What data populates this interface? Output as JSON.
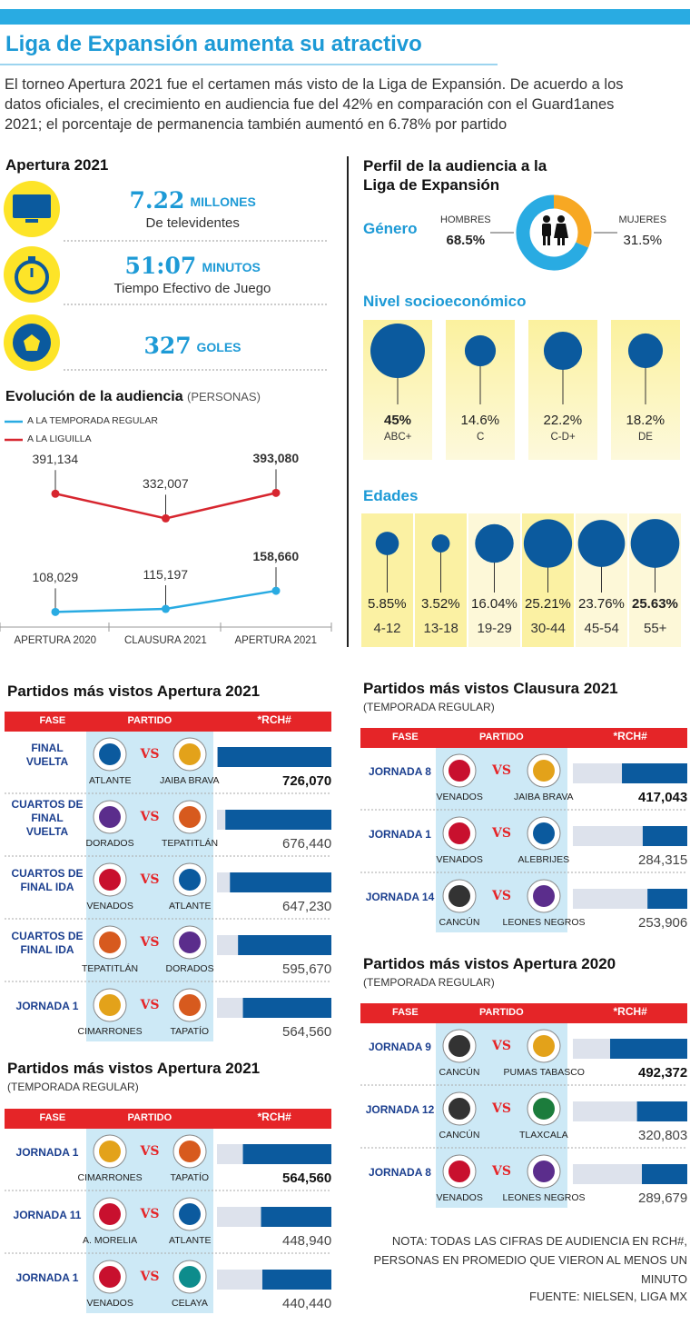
{
  "header": {
    "title": "Liga de Expansión aumenta su atractivo",
    "intro": "El torneo Apertura 2021 fue el certamen más visto de la Liga de Expansión. De acuerdo a los datos oficiales, el crecimiento en audiencia fue del 42% en comparación con el Guard1anes 2021; el porcentaje de permanencia también aumentó en 6.78% por partido"
  },
  "stats": {
    "title": "Apertura 2021",
    "items": [
      {
        "value": "7.22",
        "unit": "MILLONES",
        "label": "De televidentes"
      },
      {
        "value": "51:07",
        "unit": "MINUTOS",
        "label": "Tiempo Efectivo de Juego"
      },
      {
        "value": "327",
        "unit": "GOLES"
      }
    ]
  },
  "profile_title": "Perfil de la audiencia a la Liga de Expansión",
  "vs": "VS",
  "table_header": {
    "phase": "FASE",
    "match": "PARTIDO",
    "rating": "*RCH#"
  },
  "chart_data": [
    {
      "type": "line",
      "title": "Evolución de la audiencia",
      "subtitle": "(PERSONAS)",
      "categories": [
        "APERTURA 2020",
        "CLAUSURA 2021",
        "APERTURA 2021"
      ],
      "series": [
        {
          "name": "A LA TEMPORADA REGULAR",
          "color": "#29abe2",
          "values": [
            108029,
            115197,
            158660
          ],
          "value_labels": [
            "108,029",
            "115,197",
            "158,660"
          ]
        },
        {
          "name": "A LA LIGUILLA",
          "color": "#d7262f",
          "values": [
            391134,
            332007,
            393080
          ],
          "value_labels": [
            "391,134",
            "332,007",
            "393,080"
          ]
        }
      ],
      "ylim": [
        50000,
        420000
      ]
    },
    {
      "type": "pie",
      "title": "Género",
      "categories": [
        "HOMBRES",
        "MUJERES"
      ],
      "values": [
        68.5,
        31.5
      ],
      "value_labels": [
        "68.5%",
        "31.5%"
      ],
      "colors": [
        "#29abe2",
        "#f7a823"
      ]
    },
    {
      "type": "bubble",
      "title": "Nivel socioeconómico",
      "categories": [
        "ABC+",
        "C",
        "C-D+",
        "DE"
      ],
      "values": [
        45,
        14.6,
        22.2,
        18.2
      ],
      "value_labels": [
        "45%",
        "14.6%",
        "22.2%",
        "18.2%"
      ],
      "color": "#0b5a9e"
    },
    {
      "type": "bubble",
      "title": "Edades",
      "categories": [
        "4-12",
        "13-18",
        "19-29",
        "30-44",
        "45-54",
        "55+"
      ],
      "values": [
        5.85,
        3.52,
        16.04,
        25.21,
        23.76,
        25.63
      ],
      "value_labels": [
        "5.85%",
        "3.52%",
        "16.04%",
        "25.21%",
        "23.76%",
        "25.63%"
      ],
      "color": "#0b5a9e"
    },
    {
      "type": "bar",
      "title": "Partidos más vistos Apertura 2021",
      "categories": [
        "FINAL VUELTA",
        "CUARTOS DE FINAL VUELTA",
        "CUARTOS DE FINAL IDA",
        "CUARTOS DE FINAL IDA",
        "JORNADA 1"
      ],
      "home": [
        "ATLANTE",
        "DORADOS",
        "VENADOS",
        "TEPATITLÁN",
        "CIMARRONES"
      ],
      "away": [
        "JAIBA BRAVA",
        "TEPATITLÁN",
        "ATLANTE",
        "DORADOS",
        "TAPATÍO"
      ],
      "values": [
        726070,
        676440,
        647230,
        595670,
        564560
      ],
      "value_labels": [
        "726,070",
        "676,440",
        "647,230",
        "595,670",
        "564,560"
      ],
      "xlim": [
        0,
        730000
      ],
      "color": "#0b5a9e",
      "track_color": "#dde2ec"
    },
    {
      "type": "bar",
      "title": "Partidos más vistos Apertura 2021",
      "subtitle": "(TEMPORADA REGULAR)",
      "categories": [
        "JORNADA 1",
        "JORNADA 11",
        "JORNADA 1"
      ],
      "home": [
        "CIMARRONES",
        "A. MORELIA",
        "VENADOS"
      ],
      "away": [
        "TAPATÍO",
        "ATLANTE",
        "CELAYA"
      ],
      "values": [
        564560,
        448940,
        440440
      ],
      "value_labels": [
        "564,560",
        "448,940",
        "440,440"
      ],
      "xlim": [
        0,
        730000
      ],
      "color": "#0b5a9e",
      "track_color": "#dde2ec"
    },
    {
      "type": "bar",
      "title": "Partidos más vistos Clausura 2021",
      "subtitle": "(TEMPORADA REGULAR)",
      "categories": [
        "JORNADA 8",
        "JORNADA 1",
        "JORNADA 14"
      ],
      "home": [
        "VENADOS",
        "VENADOS",
        "CANCÚN"
      ],
      "away": [
        "JAIBA BRAVA",
        "ALEBRIJES",
        "LEONES NEGROS"
      ],
      "values": [
        417043,
        284315,
        253906
      ],
      "value_labels": [
        "417,043",
        "284,315",
        "253,906"
      ],
      "xlim": [
        0,
        730000
      ],
      "color": "#0b5a9e",
      "track_color": "#dde2ec"
    },
    {
      "type": "bar",
      "title": "Partidos más vistos Apertura 2020",
      "subtitle": "(TEMPORADA REGULAR)",
      "categories": [
        "JORNADA 9",
        "JORNADA 12",
        "JORNADA 8"
      ],
      "home": [
        "CANCÚN",
        "CANCÚN",
        "VENADOS"
      ],
      "away": [
        "PUMAS TABASCO",
        "TLAXCALA",
        "LEONES NEGROS"
      ],
      "values": [
        492372,
        320803,
        289679
      ],
      "value_labels": [
        "492,372",
        "320,803",
        "289,679"
      ],
      "xlim": [
        0,
        730000
      ],
      "color": "#0b5a9e",
      "track_color": "#dde2ec"
    }
  ],
  "notes": [
    "NOTA: TODAS LAS CIFRAS DE AUDIENCIA EN RCH#, PERSONAS EN PROMEDIO QUE VIERON AL MENOS UN MINUTO",
    "FUENTE: NIELSEN, LIGA MX"
  ]
}
